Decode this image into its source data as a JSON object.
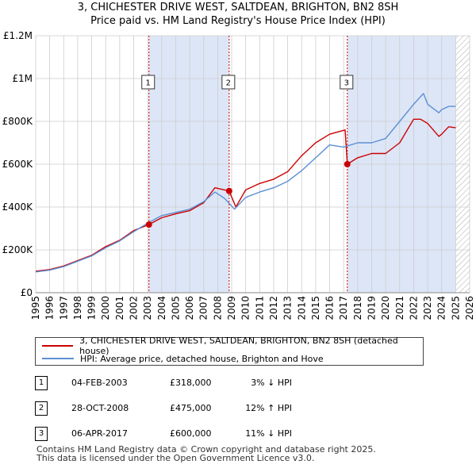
{
  "title_line1": "3, CHICHESTER DRIVE WEST, SALTDEAN, BRIGHTON, BN2 8SH",
  "title_line2": "Price paid vs. HM Land Registry's House Price Index (HPI)",
  "colors": {
    "property": "#cc0000",
    "hpi": "#5b8fd4",
    "shade": "#dde6f7",
    "grid": "#cccccc"
  },
  "chart_data": {
    "type": "line",
    "xlim": [
      1995,
      2026
    ],
    "ylim": [
      0,
      1200000
    ],
    "y_ticks": [
      0,
      200000,
      400000,
      600000,
      800000,
      1000000,
      1200000
    ],
    "y_tick_labels": [
      "£0",
      "£200K",
      "£400K",
      "£600K",
      "£800K",
      "£1M",
      "£1.2M"
    ],
    "x_ticks": [
      1995,
      1996,
      1997,
      1998,
      1999,
      2000,
      2001,
      2002,
      2003,
      2004,
      2005,
      2006,
      2007,
      2008,
      2009,
      2010,
      2011,
      2012,
      2013,
      2014,
      2015,
      2016,
      2017,
      2018,
      2019,
      2020,
      2021,
      2022,
      2023,
      2024,
      2025,
      2026
    ],
    "x_tick_labels": [
      "1995",
      "1996",
      "1997",
      "1998",
      "1999",
      "2000",
      "2001",
      "2002",
      "2003",
      "2004",
      "2005",
      "2006",
      "2007",
      "2008",
      "2009",
      "2010",
      "2011",
      "2012",
      "2013",
      "2014",
      "2015",
      "2016",
      "2017",
      "2018",
      "2019",
      "2020",
      "2021",
      "2022",
      "2023",
      "2024",
      "2025",
      "2026"
    ],
    "shaded_periods": [
      [
        2003.09,
        2008.82
      ],
      [
        2017.26,
        2025.0
      ]
    ],
    "hatched_from": 2025.0,
    "series": [
      {
        "name": "3, CHICHESTER DRIVE WEST, SALTDEAN, BRIGHTON, BN2 8SH (detached house)",
        "color": "#cc0000",
        "x": [
          1995,
          1996,
          1997,
          1998,
          1999,
          2000,
          2001,
          2002,
          2003.09,
          2004,
          2005,
          2006,
          2007,
          2007.8,
          2008.82,
          2009.3,
          2010,
          2011,
          2012,
          2013,
          2014,
          2015,
          2016,
          2017.1,
          2017.26,
          2018,
          2019,
          2020,
          2021,
          2022,
          2022.5,
          2023,
          2023.8,
          2024,
          2024.5,
          2025
        ],
        "y": [
          100000,
          108000,
          125000,
          150000,
          175000,
          215000,
          245000,
          290000,
          318000,
          350000,
          368000,
          383000,
          420000,
          490000,
          475000,
          400000,
          480000,
          510000,
          530000,
          565000,
          640000,
          700000,
          740000,
          760000,
          600000,
          630000,
          650000,
          650000,
          700000,
          810000,
          810000,
          790000,
          730000,
          740000,
          775000,
          770000
        ]
      },
      {
        "name": "HPI: Average price, detached house, Brighton and Hove",
        "color": "#5b8fd4",
        "x": [
          1995,
          1996,
          1997,
          1998,
          1999,
          2000,
          2001,
          2002,
          2003,
          2004,
          2005,
          2006,
          2007,
          2007.8,
          2008.5,
          2009.2,
          2010,
          2011,
          2012,
          2013,
          2014,
          2015,
          2016,
          2017,
          2018,
          2019,
          2020,
          2021,
          2022,
          2022.7,
          2023,
          2023.8,
          2024,
          2024.5,
          2025
        ],
        "y": [
          97000,
          105000,
          122000,
          147000,
          172000,
          210000,
          242000,
          285000,
          325000,
          360000,
          375000,
          390000,
          425000,
          470000,
          440000,
          390000,
          445000,
          470000,
          490000,
          520000,
          570000,
          630000,
          690000,
          680000,
          700000,
          700000,
          720000,
          800000,
          880000,
          930000,
          880000,
          840000,
          855000,
          870000,
          870000
        ]
      }
    ],
    "sales": [
      {
        "label": "1",
        "x": 2003.09,
        "y": 318000
      },
      {
        "label": "2",
        "x": 2008.82,
        "y": 475000
      },
      {
        "label": "3",
        "x": 2017.26,
        "y": 600000
      }
    ]
  },
  "legend": {
    "property": "3, CHICHESTER DRIVE WEST, SALTDEAN, BRIGHTON, BN2 8SH (detached house)",
    "hpi": "HPI: Average price, detached house, Brighton and Hove"
  },
  "sales_table": [
    {
      "num": "1",
      "date": "04-FEB-2003",
      "price": "£318,000",
      "hpi": "3% ↓ HPI"
    },
    {
      "num": "2",
      "date": "28-OCT-2008",
      "price": "£475,000",
      "hpi": "12% ↑ HPI"
    },
    {
      "num": "3",
      "date": "06-APR-2017",
      "price": "£600,000",
      "hpi": "11% ↓ HPI"
    }
  ],
  "footer": {
    "line1": "Contains HM Land Registry data © Crown copyright and database right 2025.",
    "line2": "This data is licensed under the Open Government Licence v3.0."
  }
}
